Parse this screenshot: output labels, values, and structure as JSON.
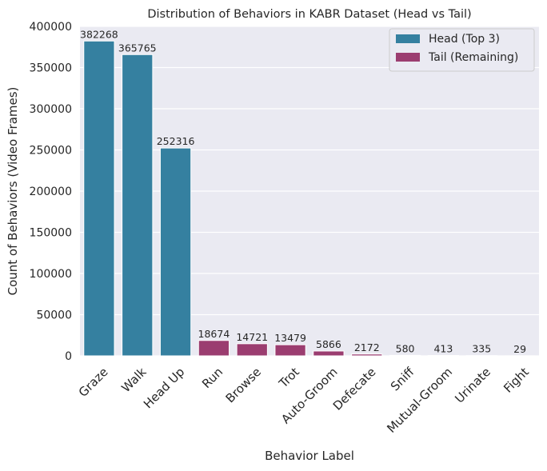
{
  "chart_data": {
    "type": "bar",
    "title": "Distribution of Behaviors in KABR Dataset (Head vs Tail)",
    "xlabel": "Behavior Label",
    "ylabel": "Count of Behaviors (Video Frames)",
    "ylim": [
      0,
      400000
    ],
    "yticks": [
      0,
      50000,
      100000,
      150000,
      200000,
      250000,
      300000,
      350000,
      400000
    ],
    "grid": true,
    "legend_position": "top-right",
    "categories": [
      "Graze",
      "Walk",
      "Head Up",
      "Run",
      "Browse",
      "Trot",
      "Auto-Groom",
      "Defecate",
      "Sniff",
      "Mutual-Groom",
      "Urinate",
      "Fight"
    ],
    "values": [
      382268,
      365765,
      252316,
      18674,
      14721,
      13479,
      5866,
      2172,
      580,
      413,
      335,
      29
    ],
    "groups": [
      "head",
      "head",
      "head",
      "tail",
      "tail",
      "tail",
      "tail",
      "tail",
      "tail",
      "tail",
      "tail",
      "tail"
    ],
    "series": [
      {
        "key": "head",
        "name": "Head (Top 3)",
        "color": "#3580a0"
      },
      {
        "key": "tail",
        "name": "Tail (Remaining)",
        "color": "#9b3d70"
      }
    ],
    "background_color": "#eaeaf2"
  }
}
